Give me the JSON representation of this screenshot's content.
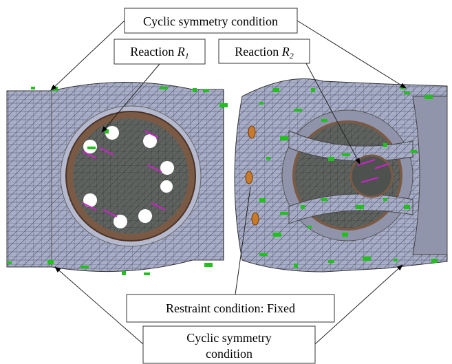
{
  "labels": {
    "top": "Cyclic symmetry condition",
    "reaction1": {
      "text": "Reaction ",
      "symbol": "R",
      "subscript": "1"
    },
    "reaction2": {
      "text": "Reaction ",
      "symbol": "R",
      "subscript": "2"
    },
    "restraint": "Restraint condition: Fixed",
    "bottom": {
      "lines": [
        "Cyclic symmetry",
        "condition"
      ]
    }
  }
}
